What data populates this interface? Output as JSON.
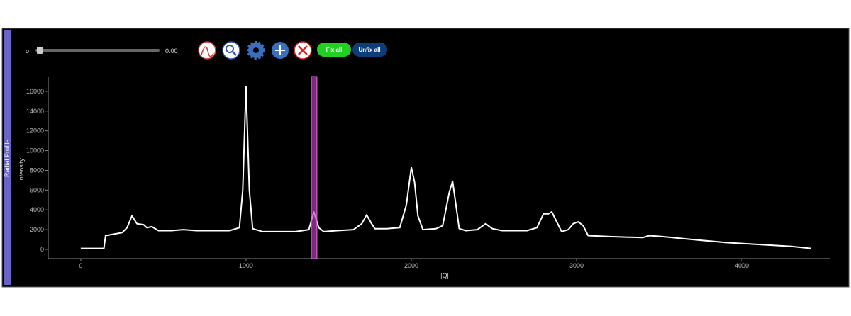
{
  "panel": {
    "tab_label": "Radial Profile"
  },
  "toolbar": {
    "sigma_label": "σ",
    "sigma_value": "0.00",
    "fix_all": "Fix all",
    "unfix_all": "Unfix all"
  },
  "chart_data": {
    "type": "line",
    "xlabel": "|Q|",
    "ylabel": "Intensity",
    "color": "#ffffff",
    "x": [
      0,
      140,
      150,
      250,
      280,
      310,
      340,
      380,
      400,
      430,
      470,
      550,
      620,
      700,
      800,
      900,
      960,
      980,
      1000,
      1020,
      1040,
      1100,
      1200,
      1300,
      1380,
      1410,
      1440,
      1470,
      1550,
      1650,
      1700,
      1730,
      1760,
      1780,
      1850,
      1930,
      1970,
      2000,
      2020,
      2040,
      2070,
      2150,
      2190,
      2230,
      2250,
      2270,
      2290,
      2330,
      2400,
      2450,
      2490,
      2550,
      2700,
      2760,
      2800,
      2830,
      2850,
      2880,
      2910,
      2950,
      2980,
      3010,
      3040,
      3070,
      3200,
      3400,
      3440,
      3520,
      3700,
      3900,
      4100,
      4300,
      4420
    ],
    "values": [
      100,
      100,
      1400,
      1700,
      2200,
      3400,
      2600,
      2500,
      2200,
      2300,
      1900,
      1900,
      2000,
      1900,
      1900,
      1900,
      2200,
      6000,
      16500,
      6000,
      2100,
      1800,
      1800,
      1800,
      2000,
      3800,
      2200,
      1800,
      1900,
      2000,
      2600,
      3500,
      2600,
      2100,
      2100,
      2200,
      4500,
      8300,
      6800,
      3400,
      2000,
      2100,
      2400,
      5800,
      6900,
      4500,
      2100,
      1900,
      2000,
      2600,
      2100,
      1900,
      1900,
      2200,
      3600,
      3600,
      3800,
      2800,
      1800,
      2000,
      2600,
      2800,
      2400,
      1400,
      1300,
      1200,
      1400,
      1300,
      1000,
      700,
      500,
      300,
      100
    ],
    "xlim": [
      -197,
      4532
    ],
    "ylim": [
      -933,
      17500
    ],
    "xticks": [
      0,
      1000,
      2000,
      3000,
      4000
    ],
    "yticks": [
      0,
      2000,
      4000,
      6000,
      8000,
      10000,
      12000,
      14000,
      16000
    ],
    "span": [
      1395,
      1429
    ],
    "span_color": "#c040c0"
  }
}
